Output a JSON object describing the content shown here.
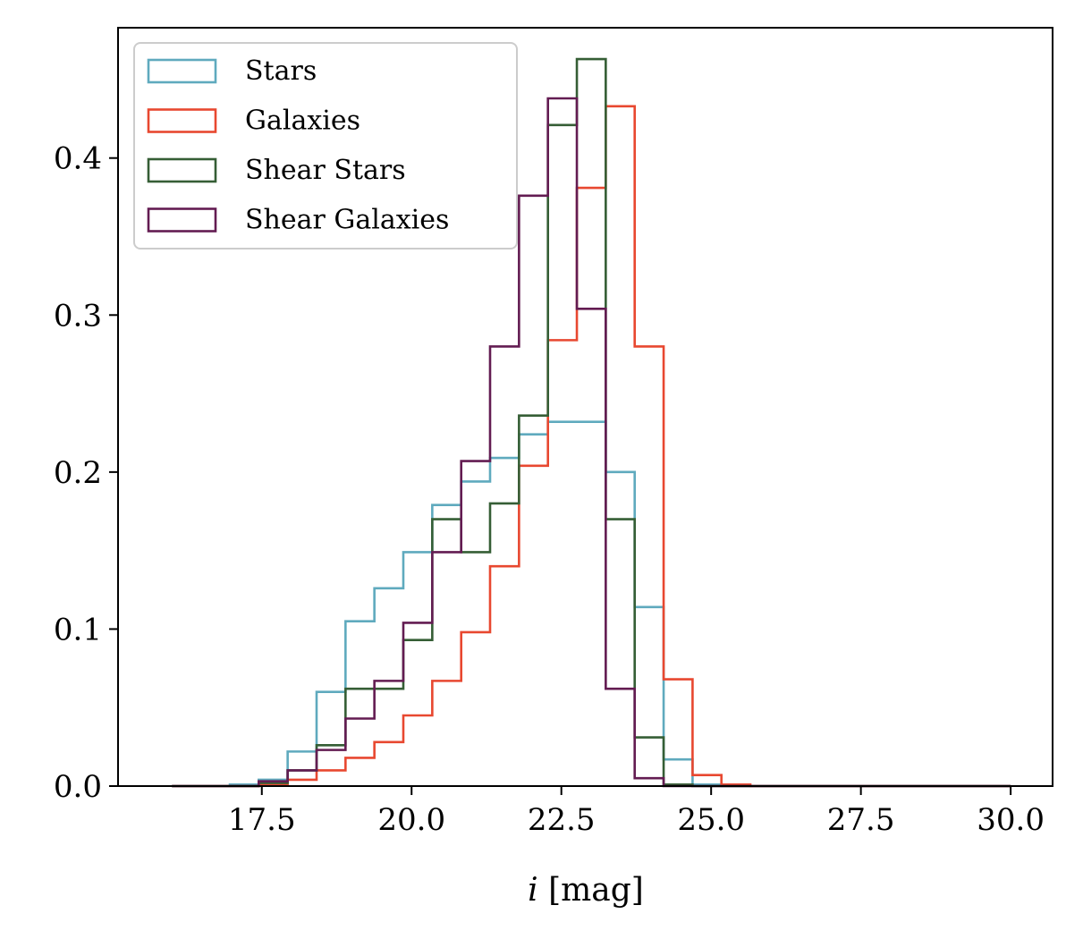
{
  "chart_data": {
    "type": "histogram",
    "title": "",
    "xlabel_italic": "i",
    "xlabel_rest": " [mag]",
    "ylabel": "",
    "xlim": [
      15.1,
      30.7
    ],
    "ylim": [
      0,
      0.483
    ],
    "xticks": [
      17.5,
      20.0,
      22.5,
      25.0,
      27.5,
      30.0
    ],
    "xtick_labels": [
      "17.5",
      "20.0",
      "22.5",
      "25.0",
      "27.5",
      "30.0"
    ],
    "yticks": [
      0.0,
      0.1,
      0.2,
      0.3,
      0.4
    ],
    "ytick_labels": [
      "0.0",
      "0.1",
      "0.2",
      "0.3",
      "0.4"
    ],
    "grid": false,
    "legend_position": "upper-left",
    "bin_edges": [
      16.0,
      16.483,
      16.966,
      17.448,
      17.931,
      18.414,
      18.897,
      19.379,
      19.862,
      20.345,
      20.828,
      21.31,
      21.793,
      22.276,
      22.759,
      23.241,
      23.724,
      24.207,
      24.69,
      25.172,
      25.655,
      26.138,
      26.621,
      27.103,
      27.586,
      28.069,
      28.552,
      29.034,
      29.517,
      30.0
    ],
    "series": [
      {
        "name": "Stars",
        "color": "#5faabe",
        "values": [
          0,
          0,
          0.001,
          0.004,
          0.022,
          0.06,
          0.105,
          0.126,
          0.149,
          0.179,
          0.194,
          0.209,
          0.224,
          0.232,
          0.232,
          0.2,
          0.114,
          0.017,
          0.001,
          0,
          0,
          0,
          0,
          0,
          0,
          0,
          0,
          0,
          0
        ]
      },
      {
        "name": "Galaxies",
        "color": "#e84830",
        "values": [
          0,
          0,
          0,
          0.001,
          0.004,
          0.01,
          0.018,
          0.028,
          0.045,
          0.067,
          0.098,
          0.14,
          0.204,
          0.284,
          0.381,
          0.433,
          0.28,
          0.068,
          0.007,
          0.001,
          0,
          0,
          0,
          0,
          0,
          0,
          0,
          0,
          0
        ]
      },
      {
        "name": "Shear Stars",
        "color": "#355e35",
        "values": [
          0,
          0,
          0,
          0.002,
          0.01,
          0.026,
          0.062,
          0.062,
          0.093,
          0.17,
          0.149,
          0.18,
          0.236,
          0.421,
          0.463,
          0.17,
          0.031,
          0.001,
          0,
          0,
          0,
          0,
          0,
          0,
          0,
          0,
          0,
          0,
          0
        ]
      },
      {
        "name": "Shear Galaxies",
        "color": "#631c52",
        "values": [
          0,
          0,
          0,
          0.003,
          0.01,
          0.023,
          0.043,
          0.067,
          0.104,
          0.149,
          0.207,
          0.28,
          0.376,
          0.438,
          0.304,
          0.062,
          0.005,
          0,
          0,
          0,
          0,
          0,
          0,
          0,
          0,
          0,
          0,
          0,
          0
        ]
      }
    ]
  }
}
